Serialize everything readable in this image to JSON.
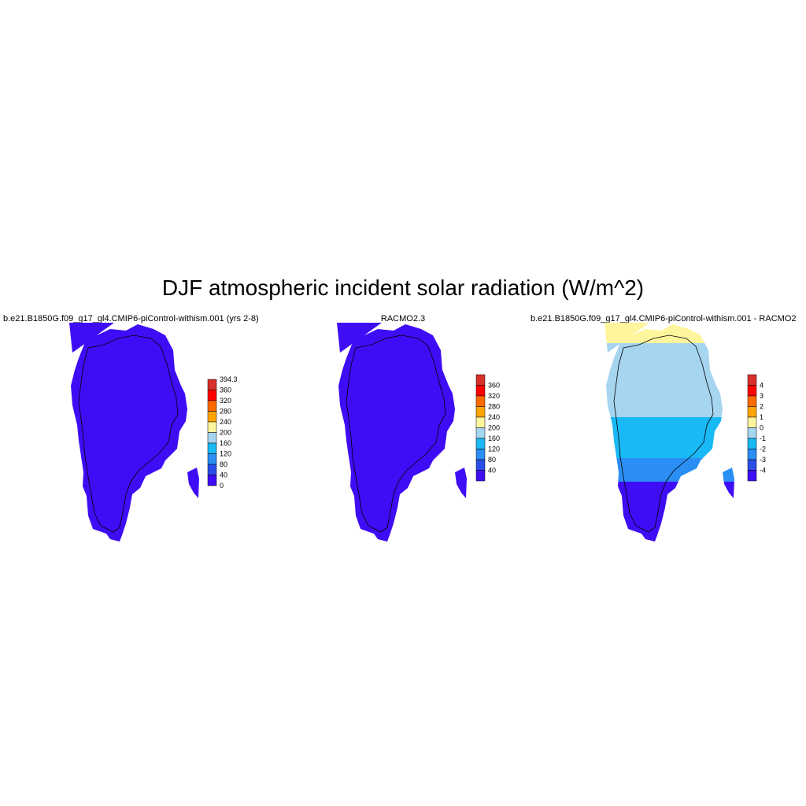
{
  "title": "DJF atmospheric incident solar radiation (W/m^2)",
  "panels": [
    {
      "title": "b.e21.B1850G.f09_g17_gl4.CMIP6-piControl-withism.001 (yrs 2-8)",
      "colorbar": {
        "labels": [
          "394.3",
          "360",
          "320",
          "280",
          "240",
          "200",
          "160",
          "120",
          "80",
          "40",
          "0"
        ],
        "colors": [
          "#d7302a",
          "#ff0000",
          "#ff6a00",
          "#ffa500",
          "#fff59d",
          "#a6d5f0",
          "#19b9f5",
          "#2a8ef5",
          "#2b4ee8",
          "#3f0df5"
        ]
      }
    },
    {
      "title": "RACMO2.3",
      "colorbar": {
        "labels": [
          "360",
          "320",
          "280",
          "240",
          "200",
          "160",
          "120",
          "80",
          "40"
        ],
        "colors": [
          "#d7302a",
          "#ff0000",
          "#ff6a00",
          "#ffa500",
          "#fff59d",
          "#a6d5f0",
          "#19b9f5",
          "#2a8ef5",
          "#2b4ee8",
          "#3f0df5"
        ]
      }
    },
    {
      "title": "b.e21.B1850G.f09_g17_gl4.CMIP6-piControl-withism.001 - RACMO2",
      "colorbar": {
        "labels": [
          "4",
          "3",
          "2",
          "1",
          "0",
          "-1",
          "-2",
          "-3",
          "-4"
        ],
        "colors": [
          "#d7302a",
          "#ff0000",
          "#ff6a00",
          "#ffa500",
          "#fff59d",
          "#a6d5f0",
          "#19b9f5",
          "#2a8ef5",
          "#2b4ee8",
          "#3f0df5"
        ]
      }
    }
  ],
  "colors": {
    "ice_field": "#3f0df5",
    "diff_north": "#fff59d",
    "diff_mid_north": "#a6d5f0",
    "diff_mid": "#19b9f5",
    "diff_mid_south": "#2a8ef5",
    "diff_south": "#3f0df5"
  }
}
